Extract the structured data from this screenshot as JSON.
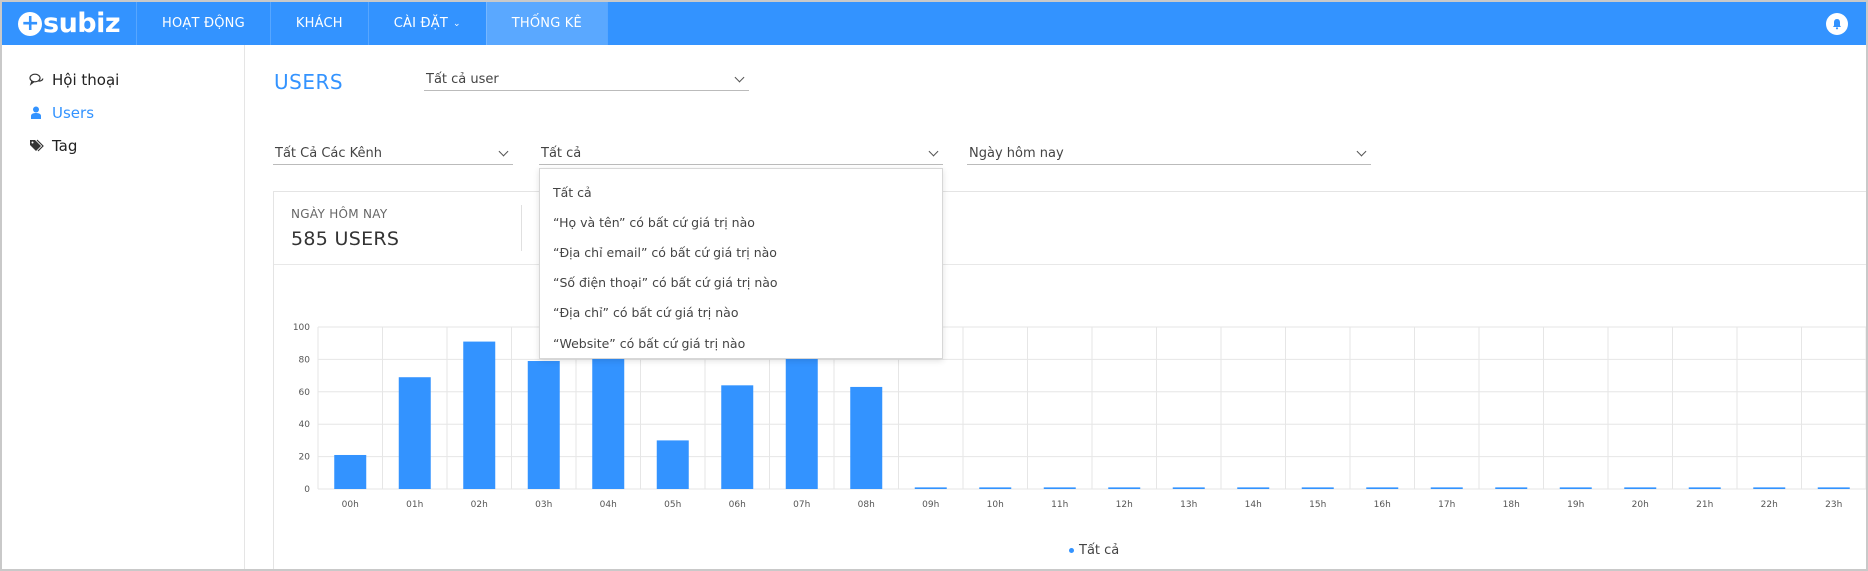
{
  "app": {
    "logo_text": "subiz",
    "nav": [
      {
        "label": "HOẠT ĐỘNG"
      },
      {
        "label": "KHÁCH"
      },
      {
        "label": "CÀI ĐẶT"
      },
      {
        "label": "THỐNG KÊ"
      }
    ],
    "active_nav": "THỐNG KÊ",
    "brand_color": "#3393ff"
  },
  "sidebar": {
    "items": [
      {
        "label": "Hội thoại",
        "icon": "chat-bubbles-icon"
      },
      {
        "label": "Users",
        "icon": "user-icon"
      },
      {
        "label": "Tag",
        "icon": "tag-icon"
      }
    ],
    "active_item": "Users"
  },
  "main": {
    "title": "USERS",
    "user_filter": "Tất cả user",
    "channel_filter": "Tất Cả Các Kênh",
    "attribute_filter": "Tất cả",
    "date_filter": "Ngày hôm nay",
    "dropdown_options": [
      "Tất cả",
      "“Họ và tên” có bất cứ giá trị nào",
      "“Địa chỉ email” có bất cứ giá trị nào",
      "“Số điện thoại” có bất cứ giá trị nào",
      "“Địa chỉ” có bất cứ giá trị nào",
      "“Website” có bất cứ giá trị nào"
    ],
    "summary": {
      "label": "NGÀY HÔM NAY",
      "value": "585 USERS"
    }
  },
  "chart_data": {
    "type": "bar",
    "categories": [
      "00h",
      "01h",
      "02h",
      "03h",
      "04h",
      "05h",
      "06h",
      "07h",
      "08h",
      "09h",
      "10h",
      "11h",
      "12h",
      "13h",
      "14h",
      "15h",
      "16h",
      "17h",
      "18h",
      "19h",
      "20h",
      "21h",
      "22h",
      "23h"
    ],
    "series": [
      {
        "name": "Tất cả",
        "values": [
          21,
          69,
          91,
          79,
          82,
          30,
          64,
          82,
          63,
          1,
          1,
          1,
          1,
          1,
          1,
          1,
          1,
          1,
          1,
          1,
          1,
          1,
          1,
          1
        ]
      }
    ],
    "yticks": [
      0,
      20,
      40,
      60,
      80,
      100
    ],
    "ylim": [
      0,
      100
    ],
    "grid": true,
    "legend": "bottom-center",
    "color": "#3393ff"
  }
}
